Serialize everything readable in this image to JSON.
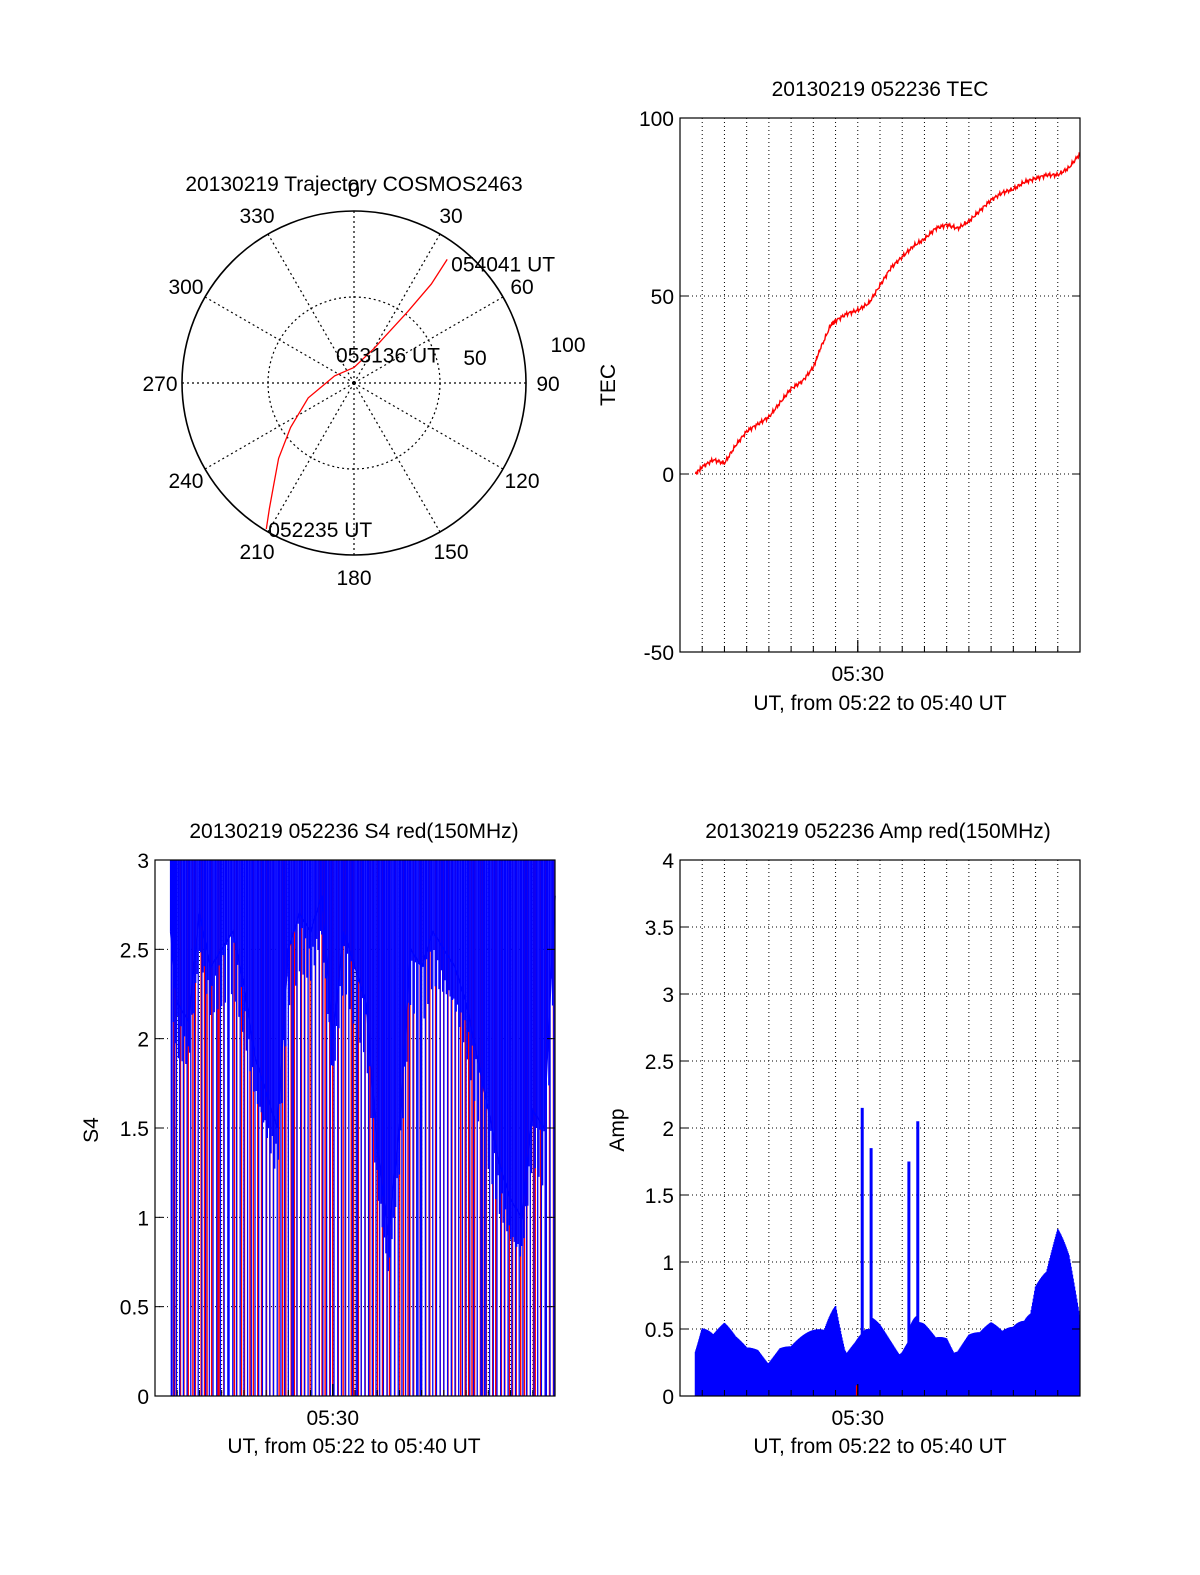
{
  "chart_data": [
    {
      "type": "polar",
      "title": "20130219 Trajectory COSMOS2463",
      "azimuth_labels": [
        "0",
        "30",
        "60",
        "90",
        "120",
        "150",
        "180",
        "210",
        "240",
        "270",
        "300",
        "330"
      ],
      "azimuths": [
        0,
        30,
        60,
        90,
        120,
        150,
        180,
        210,
        240,
        270,
        300,
        330
      ],
      "radial_labels": [
        "50",
        "100"
      ],
      "radial_values": [
        50,
        100
      ],
      "zenith_max": 100,
      "series": [
        {
          "color": "#ff0000",
          "points": [
            {
              "az": 211,
              "zen": 99
            },
            {
              "az": 214,
              "zen": 88
            },
            {
              "az": 218,
              "zen": 76
            },
            {
              "az": 225,
              "zen": 62
            },
            {
              "az": 235,
              "zen": 45
            },
            {
              "az": 252,
              "zen": 28
            },
            {
              "az": 290,
              "zen": 12
            },
            {
              "az": 0,
              "zen": 9
            },
            {
              "az": 30,
              "zen": 23
            },
            {
              "az": 37,
              "zen": 52
            },
            {
              "az": 38,
              "zen": 73
            },
            {
              "az": 37,
              "zen": 90
            }
          ]
        }
      ],
      "annotations": [
        {
          "text": "054041 UT",
          "az": 37,
          "zen": 90
        },
        {
          "text": "053136 UT",
          "az": 0,
          "zen": 9
        },
        {
          "text": "052235 UT",
          "az": 211,
          "zen": 99
        }
      ],
      "grid": true
    },
    {
      "type": "line",
      "title": "20130219 052236 TEC",
      "xlabel": "UT, from 05:22 to 05:40 UT",
      "ylabel": "TEC",
      "xlim": [
        0,
        18
      ],
      "ylim": [
        -50,
        100
      ],
      "yticks": [
        -50,
        0,
        50,
        100
      ],
      "xtick_label": {
        "value": 8,
        "text": "05:30"
      },
      "grid": true,
      "series": [
        {
          "color": "#ff0000",
          "x": [
            0.7,
            1.0,
            1.5,
            2.0,
            2.5,
            3.0,
            3.5,
            4.0,
            4.5,
            5.0,
            5.5,
            6.0,
            6.3,
            6.8,
            7.0,
            7.5,
            8.0,
            8.5,
            9.0,
            9.5,
            10.0,
            10.5,
            11.0,
            11.5,
            12.0,
            12.5,
            13.0,
            13.5,
            14.0,
            14.5,
            15.0,
            15.5,
            16.0,
            16.5,
            17.0,
            17.5,
            18.0
          ],
          "y": [
            0,
            2,
            4,
            3,
            8,
            12,
            14,
            16,
            20,
            24,
            26,
            30,
            35,
            42,
            43,
            45,
            46,
            48,
            53,
            58,
            61,
            64,
            66,
            69,
            70,
            69,
            71,
            74,
            77,
            79,
            80,
            82,
            83,
            84,
            84,
            86,
            90
          ]
        }
      ]
    },
    {
      "type": "line",
      "title": "20130219 052236 S4 red(150MHz)",
      "xlabel": "UT, from 05:22 to 05:40 UT",
      "ylabel": "S4",
      "xlim": [
        0,
        18
      ],
      "ylim": [
        0,
        3
      ],
      "yticks": [
        0,
        0.5,
        1,
        1.5,
        2,
        2.5,
        3
      ],
      "ytick_labels": [
        "0",
        "0.5",
        "1",
        "1.5",
        "2",
        "2.5",
        "3"
      ],
      "xtick_label": {
        "value": 8,
        "text": "05:30"
      },
      "grid": true,
      "series": [
        {
          "color": "#0000ff",
          "x": [
            0.7,
            1.0,
            1.5,
            2.0,
            2.5,
            3.0,
            3.5,
            4.0,
            4.5,
            5.0,
            5.5,
            6.0,
            6.5,
            7.0,
            7.5,
            8.0,
            8.5,
            9.0,
            9.5,
            10.0,
            10.5,
            11.0,
            11.5,
            12.0,
            12.5,
            13.0,
            13.5,
            14.0,
            14.5,
            15.0,
            15.5,
            16.0,
            16.5,
            17.0,
            17.5,
            18.0
          ],
          "y": [
            2.6,
            2.2,
            2.1,
            2.7,
            2.4,
            2.5,
            2.6,
            2.3,
            1.9,
            1.7,
            1.5,
            2.5,
            2.7,
            2.6,
            2.8,
            2.0,
            2.6,
            2.4,
            2.2,
            1.4,
            0.9,
            1.5,
            2.5,
            2.4,
            2.6,
            2.5,
            2.4,
            2.2,
            1.9,
            1.6,
            1.3,
            1.1,
            1.0,
            1.6,
            1.5,
            2.8
          ]
        }
      ]
    },
    {
      "type": "line",
      "title": "20130219 052236 Amp red(150MHz)",
      "xlabel": "UT, from 05:22 to 05:40 UT",
      "ylabel": "Amp",
      "xlim": [
        0,
        18
      ],
      "ylim": [
        0,
        4
      ],
      "yticks": [
        0,
        0.5,
        1,
        1.5,
        2,
        2.5,
        3,
        3.5,
        4
      ],
      "ytick_labels": [
        "0",
        "0.5",
        "1",
        "1.5",
        "2",
        "2.5",
        "3",
        "3.5",
        "4"
      ],
      "xtick_label": {
        "value": 8,
        "text": "05:30"
      },
      "grid": true,
      "series": [
        {
          "color": "#0000ff",
          "x": [
            0.7,
            1.0,
            1.5,
            2.0,
            2.5,
            3.0,
            3.5,
            4.0,
            4.5,
            5.0,
            5.5,
            6.0,
            6.5,
            7.0,
            7.5,
            7.9,
            8.2,
            8.4,
            8.6,
            9.0,
            9.5,
            10.0,
            10.3,
            10.5,
            10.7,
            11.0,
            11.5,
            12.0,
            12.5,
            13.0,
            13.5,
            14.0,
            14.5,
            15.0,
            15.5,
            16.0,
            16.5,
            17.0,
            17.5,
            18.0
          ],
          "y": [
            0.55,
            0.65,
            0.5,
            0.55,
            0.45,
            0.4,
            0.45,
            0.4,
            0.45,
            0.4,
            0.45,
            0.5,
            0.55,
            0.9,
            0.5,
            0.5,
            2.15,
            0.5,
            1.85,
            0.6,
            0.55,
            0.5,
            1.75,
            0.6,
            2.05,
            0.55,
            0.5,
            0.6,
            0.5,
            0.55,
            0.5,
            0.55,
            0.5,
            0.6,
            0.8,
            1.2,
            1.1,
            1.3,
            1.05,
            0.6
          ]
        }
      ]
    }
  ]
}
